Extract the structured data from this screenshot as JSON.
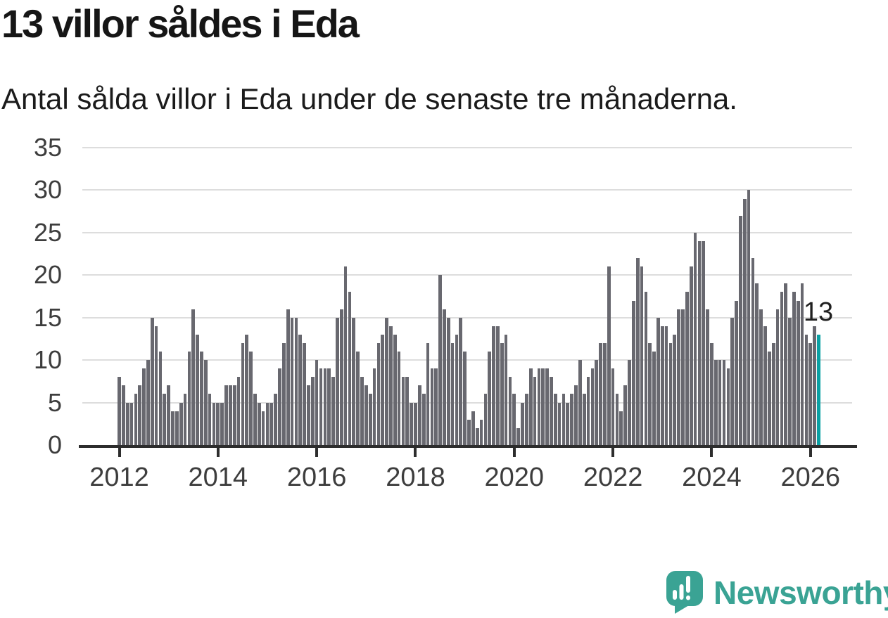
{
  "title": "13 villor såldes i Eda",
  "subtitle": "Antal sålda villor i Eda under de senaste tre månaderna.",
  "annotation": {
    "label": "13"
  },
  "branding": {
    "name": "Newsworthy"
  },
  "colors": {
    "bar": "#68686f",
    "highlight_bar": "#0ba1a4",
    "gridline": "#dddddd",
    "axis": "#2d2d2d",
    "axis_label": "#3d3d3d",
    "text": "#161616",
    "logo": "#3aa394"
  },
  "chart_data": {
    "type": "bar",
    "title": "13 villor såldes i Eda",
    "subtitle": "Antal sålda villor i Eda under de senaste tre månaderna.",
    "xlabel": "",
    "ylabel": "",
    "x_unit": "month",
    "start_year": 2012,
    "x_tick_years": [
      2012,
      2014,
      2016,
      2018,
      2020,
      2022,
      2024,
      2026
    ],
    "y_ticks": [
      0,
      5,
      10,
      15,
      20,
      25,
      30,
      35
    ],
    "ylim": [
      0,
      35
    ],
    "grid": true,
    "legend": false,
    "highlight_last": true,
    "last_value_label": "13",
    "values": [
      8,
      7,
      5,
      5,
      6,
      7,
      9,
      10,
      15,
      14,
      11,
      6,
      7,
      4,
      4,
      5,
      6,
      11,
      16,
      13,
      11,
      10,
      6,
      5,
      5,
      5,
      7,
      7,
      7,
      8,
      12,
      13,
      11,
      6,
      5,
      4,
      5,
      5,
      6,
      9,
      12,
      16,
      15,
      15,
      13,
      12,
      7,
      8,
      10,
      9,
      9,
      9,
      8,
      15,
      16,
      21,
      18,
      15,
      11,
      8,
      7,
      6,
      9,
      12,
      13,
      15,
      14,
      13,
      11,
      8,
      8,
      5,
      5,
      7,
      6,
      12,
      9,
      9,
      20,
      16,
      15,
      12,
      13,
      15,
      11,
      3,
      4,
      2,
      3,
      6,
      11,
      14,
      14,
      12,
      13,
      8,
      6,
      2,
      5,
      6,
      9,
      8,
      9,
      9,
      9,
      8,
      6,
      5,
      6,
      5,
      6,
      7,
      10,
      6,
      8,
      9,
      10,
      12,
      12,
      21,
      9,
      6,
      4,
      7,
      10,
      17,
      22,
      21,
      18,
      12,
      11,
      15,
      14,
      14,
      12,
      13,
      16,
      16,
      18,
      21,
      25,
      24,
      24,
      16,
      12,
      10,
      10,
      10,
      9,
      15,
      17,
      27,
      29,
      30,
      22,
      19,
      16,
      14,
      11,
      12,
      16,
      18,
      19,
      15,
      18,
      17,
      19,
      13,
      12,
      14,
      13
    ]
  }
}
